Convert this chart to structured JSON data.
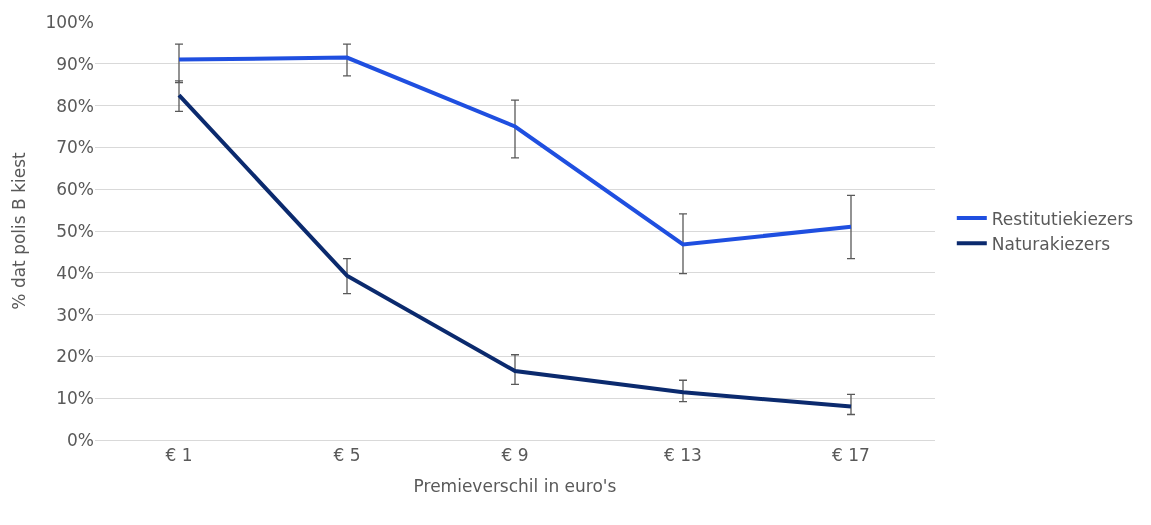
{
  "chart_data": {
    "type": "line",
    "xlabel": "Premieverschil in euro's",
    "ylabel": "% dat polis B kiest",
    "categories": [
      "€ 1",
      "€ 5",
      "€ 9",
      "€ 13",
      "€ 17"
    ],
    "series": [
      {
        "name": "Restitutiekiezers",
        "color": "#1f4fe0",
        "values": [
          91.0,
          91.5,
          75.0,
          46.8,
          51.0
        ],
        "errors": [
          [
            85.5,
            94.7
          ],
          [
            87.1,
            94.7
          ],
          [
            67.5,
            81.3
          ],
          [
            39.8,
            54.1
          ],
          [
            43.4,
            58.5
          ]
        ]
      },
      {
        "name": "Naturakiezers",
        "color": "#0b2a6e",
        "values": [
          82.5,
          39.3,
          16.5,
          11.4,
          8.0
        ],
        "errors": [
          [
            78.6,
            85.9
          ],
          [
            35.0,
            43.4
          ],
          [
            13.3,
            20.4
          ],
          [
            9.2,
            14.3
          ],
          [
            6.1,
            10.9
          ]
        ]
      }
    ],
    "ylim": [
      0,
      100
    ],
    "yticks": [
      {
        "value": 0,
        "label": "0%"
      },
      {
        "value": 10,
        "label": "10%"
      },
      {
        "value": 20,
        "label": "20%"
      },
      {
        "value": 30,
        "label": "30%"
      },
      {
        "value": 40,
        "label": "40%"
      },
      {
        "value": 50,
        "label": "50%"
      },
      {
        "value": 60,
        "label": "60%"
      },
      {
        "value": 70,
        "label": "70%"
      },
      {
        "value": 80,
        "label": "80%"
      },
      {
        "value": 90,
        "label": "90%"
      },
      {
        "value": 100,
        "label": "100%"
      }
    ],
    "grid": "y",
    "legend": "right",
    "marker": "none",
    "line_style": "solid"
  }
}
